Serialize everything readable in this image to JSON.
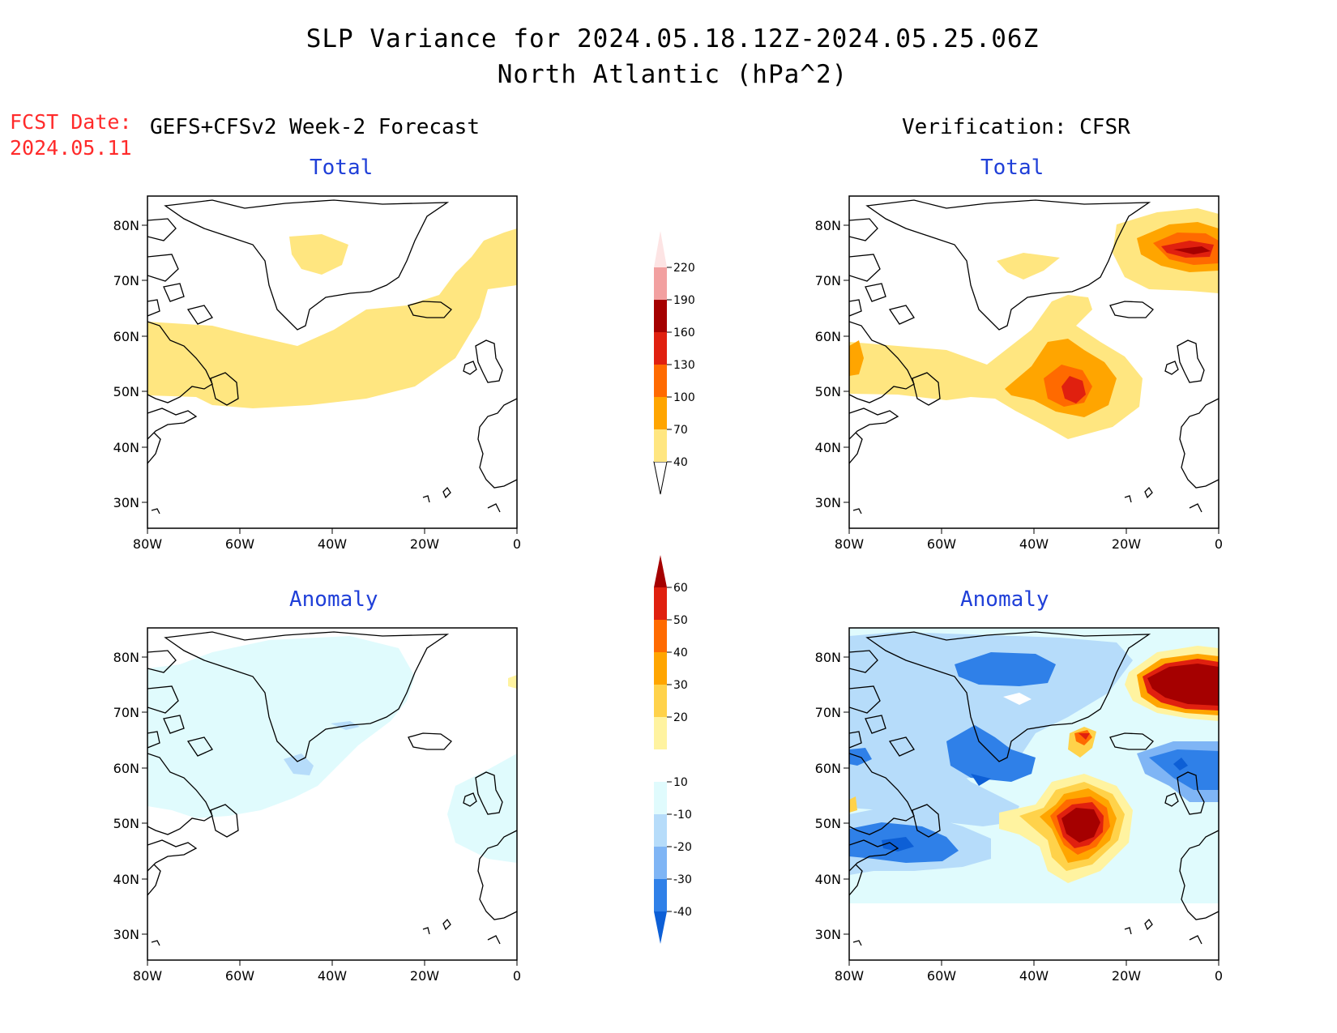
{
  "header": {
    "title_line1": "SLP Variance for 2024.05.18.12Z-2024.05.25.06Z",
    "title_line2": "North Atlantic (hPa^2)",
    "fcst_label": "FCST Date:",
    "fcst_date": "2024.05.11",
    "left_title": "GEFS+CFSv2 Week-2 Forecast",
    "right_title": "Verification: CFSR"
  },
  "panels": {
    "top_left_title": "Total",
    "top_right_title": "Total",
    "bottom_left_title": "Anomaly",
    "bottom_right_title": "Anomaly"
  },
  "axes": {
    "lat_labels": [
      "80N",
      "70N",
      "60N",
      "50N",
      "40N",
      "30N"
    ],
    "lon_labels": [
      "80W",
      "60W",
      "40W",
      "20W",
      "0"
    ]
  },
  "colorbars": {
    "total": {
      "levels": [
        "40",
        "70",
        "100",
        "130",
        "160",
        "190",
        "220"
      ],
      "colors": [
        "#ffe680",
        "#ffa500",
        "#ff6a00",
        "#e0200f",
        "#a50000",
        "#f2a0a0",
        "#fde4e4"
      ]
    },
    "anomaly": {
      "levels": [
        "-40",
        "-30",
        "-20",
        "-10",
        "10",
        "20",
        "30",
        "40",
        "50",
        "60"
      ],
      "colors": [
        "#0d5fd6",
        "#2f80e8",
        "#7fb5f5",
        "#b6dcfa",
        "#e0fbfd",
        "#ffffff",
        "#fff3a0",
        "#ffd24a",
        "#ffa500",
        "#ff6a00",
        "#e0200f",
        "#a50000"
      ]
    }
  },
  "colors": {
    "title_blue": "#1f3fd8",
    "fcst_red": "#ff2a2a"
  }
}
